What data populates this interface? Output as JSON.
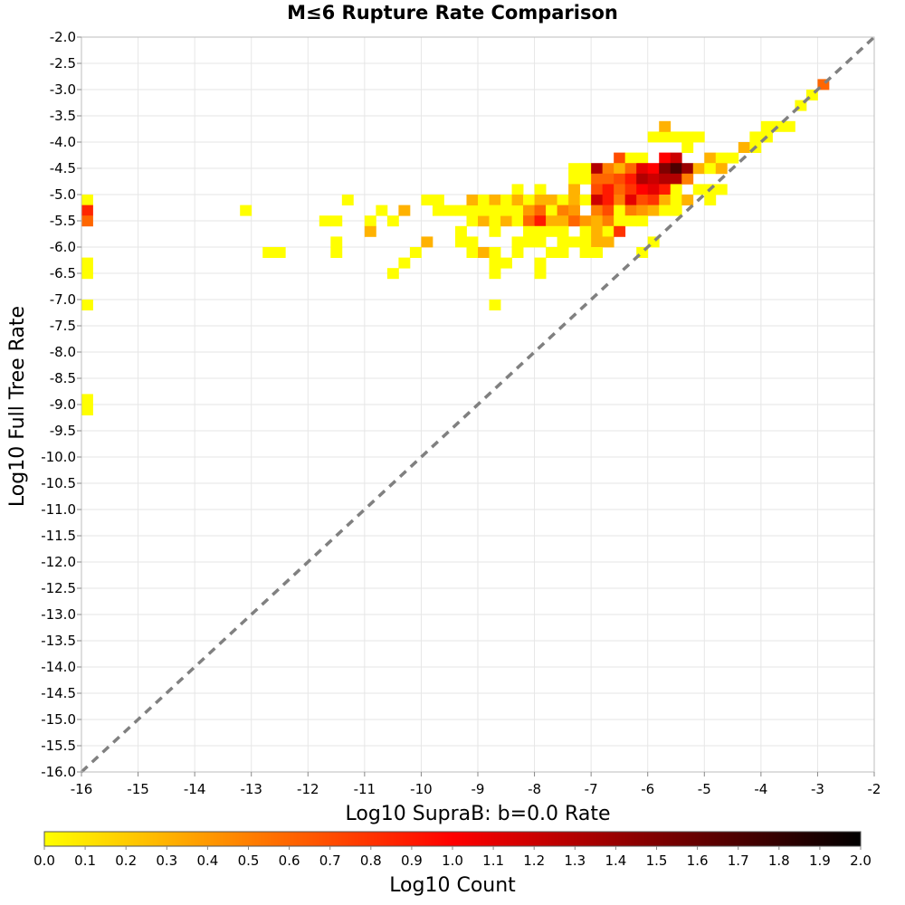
{
  "chart_data": {
    "type": "heatmap",
    "title": "M≤6 Rupture Rate Comparison",
    "xlabel": "Log10 SupraB: b=0.0 Rate",
    "ylabel": "Log10 Full Tree Rate",
    "colorbar_label": "Log10 Count",
    "xlim": [
      -16,
      -2
    ],
    "ylim": [
      -16,
      -2
    ],
    "x_ticks": [
      "-16",
      "-15",
      "-14",
      "-13",
      "-12",
      "-11",
      "-10",
      "-9",
      "-8",
      "-7",
      "-6",
      "-5",
      "-4",
      "-3",
      "-2"
    ],
    "y_ticks": [
      "-2.0",
      "-2.5",
      "-3.0",
      "-3.5",
      "-4.0",
      "-4.5",
      "-5.0",
      "-5.5",
      "-6.0",
      "-6.5",
      "-7.0",
      "-7.5",
      "-8.0",
      "-8.5",
      "-9.0",
      "-9.5",
      "-10.0",
      "-10.5",
      "-11.0",
      "-11.5",
      "-12.0",
      "-12.5",
      "-13.0",
      "-13.5",
      "-14.0",
      "-14.5",
      "-15.0",
      "-15.5",
      "-16.0"
    ],
    "colorbar_ticks": [
      "0.0",
      "0.1",
      "0.2",
      "0.3",
      "0.4",
      "0.5",
      "0.6",
      "0.7",
      "0.8",
      "0.9",
      "1.0",
      "1.1",
      "1.2",
      "1.3",
      "1.4",
      "1.5",
      "1.6",
      "1.7",
      "1.8",
      "1.9",
      "2.0"
    ],
    "colorbar_range": [
      0,
      2
    ],
    "colormap": [
      "#ffff00",
      "#ff7f00",
      "#ff0000",
      "#7f0000",
      "#000000"
    ],
    "reference_line": {
      "from": [
        -16,
        -16
      ],
      "to": [
        -2,
        -2
      ],
      "style": "dashed",
      "color": "#808080"
    },
    "cell_size": [
      0.2,
      0.2
    ],
    "cells": [
      [
        -15.9,
        -5.1,
        0.0
      ],
      [
        -15.9,
        -5.3,
        0.85
      ],
      [
        -15.9,
        -5.5,
        0.6
      ],
      [
        -15.9,
        -6.3,
        0.0
      ],
      [
        -15.9,
        -6.5,
        0.0
      ],
      [
        -15.9,
        -7.1,
        0.0
      ],
      [
        -15.9,
        -8.9,
        0.0
      ],
      [
        -15.9,
        -9.1,
        0.0
      ],
      [
        -13.1,
        -5.3,
        0.0
      ],
      [
        -12.7,
        -6.1,
        0.0
      ],
      [
        -12.5,
        -6.1,
        0.0
      ],
      [
        -11.7,
        -5.5,
        0.0
      ],
      [
        -11.5,
        -5.5,
        0.0
      ],
      [
        -11.5,
        -5.9,
        0.0
      ],
      [
        -11.5,
        -6.1,
        0.0
      ],
      [
        -11.3,
        -5.1,
        0.0
      ],
      [
        -10.9,
        -5.5,
        0.0
      ],
      [
        -10.9,
        -5.7,
        0.3
      ],
      [
        -10.7,
        -5.3,
        0.0
      ],
      [
        -10.5,
        -5.5,
        0.0
      ],
      [
        -10.3,
        -5.3,
        0.3
      ],
      [
        -10.5,
        -6.5,
        0.0
      ],
      [
        -10.3,
        -6.3,
        0.0
      ],
      [
        -10.1,
        -6.1,
        0.0
      ],
      [
        -9.9,
        -5.9,
        0.3
      ],
      [
        -9.9,
        -5.1,
        0.0
      ],
      [
        -9.7,
        -5.1,
        0.0
      ],
      [
        -9.7,
        -5.3,
        0.0
      ],
      [
        -9.5,
        -5.3,
        0.0
      ],
      [
        -9.3,
        -5.3,
        0.0
      ],
      [
        -9.1,
        -5.3,
        0.0
      ],
      [
        -9.1,
        -5.1,
        0.3
      ],
      [
        -8.9,
        -5.1,
        0.0
      ],
      [
        -8.7,
        -5.1,
        0.3
      ],
      [
        -9.3,
        -5.7,
        0.0
      ],
      [
        -9.1,
        -5.5,
        0.0
      ],
      [
        -9.1,
        -5.9,
        0.0
      ],
      [
        -9.3,
        -5.9,
        0.0
      ],
      [
        -9.1,
        -6.1,
        0.0
      ],
      [
        -8.9,
        -5.5,
        0.3
      ],
      [
        -8.7,
        -5.5,
        0.0
      ],
      [
        -8.5,
        -5.5,
        0.3
      ],
      [
        -8.3,
        -5.5,
        0.0
      ],
      [
        -8.9,
        -5.3,
        0.0
      ],
      [
        -8.7,
        -5.3,
        0.0
      ],
      [
        -8.5,
        -5.3,
        0.0
      ],
      [
        -8.3,
        -5.3,
        0.0
      ],
      [
        -8.3,
        -4.9,
        0.0
      ],
      [
        -8.5,
        -5.1,
        0.0
      ],
      [
        -8.3,
        -5.1,
        0.3
      ],
      [
        -8.7,
        -5.7,
        0.0
      ],
      [
        -8.9,
        -6.1,
        0.3
      ],
      [
        -8.7,
        -6.1,
        0.0
      ],
      [
        -8.7,
        -6.3,
        0.0
      ],
      [
        -8.7,
        -6.5,
        0.0
      ],
      [
        -8.5,
        -6.3,
        0.0
      ],
      [
        -8.7,
        -7.1,
        0.0
      ],
      [
        -8.1,
        -5.1,
        0.0
      ],
      [
        -8.1,
        -5.3,
        0.4
      ],
      [
        -8.1,
        -5.5,
        0.6
      ],
      [
        -7.9,
        -4.9,
        0.0
      ],
      [
        -7.9,
        -5.1,
        0.3
      ],
      [
        -7.9,
        -5.3,
        0.6
      ],
      [
        -7.9,
        -5.5,
        0.9
      ],
      [
        -7.9,
        -5.7,
        0.0
      ],
      [
        -7.9,
        -5.9,
        0.0
      ],
      [
        -8.1,
        -5.7,
        0.0
      ],
      [
        -8.1,
        -5.9,
        0.0
      ],
      [
        -8.3,
        -5.9,
        0.0
      ],
      [
        -8.3,
        -6.1,
        0.0
      ],
      [
        -7.9,
        -6.3,
        0.0
      ],
      [
        -7.9,
        -6.5,
        0.0
      ],
      [
        -7.7,
        -5.1,
        0.3
      ],
      [
        -7.7,
        -5.3,
        0.0
      ],
      [
        -7.7,
        -5.5,
        0.3
      ],
      [
        -7.7,
        -5.7,
        0.0
      ],
      [
        -7.7,
        -6.1,
        0.0
      ],
      [
        -7.5,
        -5.1,
        0.0
      ],
      [
        -7.5,
        -5.3,
        0.5
      ],
      [
        -7.5,
        -5.5,
        0.3
      ],
      [
        -7.5,
        -5.7,
        0.0
      ],
      [
        -7.5,
        -5.9,
        0.0
      ],
      [
        -7.5,
        -6.1,
        0.0
      ],
      [
        -7.3,
        -4.5,
        0.0
      ],
      [
        -7.3,
        -4.7,
        0.0
      ],
      [
        -7.3,
        -4.9,
        0.3
      ],
      [
        -7.3,
        -5.1,
        0.3
      ],
      [
        -7.3,
        -5.3,
        0.4
      ],
      [
        -7.3,
        -5.5,
        0.6
      ],
      [
        -7.3,
        -5.9,
        0.0
      ],
      [
        -7.1,
        -4.5,
        0.0
      ],
      [
        -7.1,
        -4.7,
        0.0
      ],
      [
        -7.1,
        -5.1,
        0.0
      ],
      [
        -7.1,
        -5.5,
        0.4
      ],
      [
        -7.1,
        -5.7,
        0.0
      ],
      [
        -7.1,
        -5.9,
        0.0
      ],
      [
        -7.1,
        -6.1,
        0.0
      ],
      [
        -6.9,
        -4.5,
        1.3
      ],
      [
        -6.9,
        -4.7,
        0.6
      ],
      [
        -6.9,
        -4.9,
        0.7
      ],
      [
        -6.9,
        -5.1,
        1.2
      ],
      [
        -6.9,
        -5.3,
        0.5
      ],
      [
        -6.9,
        -5.5,
        0.3
      ],
      [
        -6.9,
        -5.7,
        0.3
      ],
      [
        -6.9,
        -5.9,
        0.3
      ],
      [
        -6.9,
        -6.1,
        0.0
      ],
      [
        -6.7,
        -4.5,
        0.5
      ],
      [
        -6.7,
        -4.7,
        0.6
      ],
      [
        -6.7,
        -4.9,
        0.9
      ],
      [
        -6.7,
        -5.1,
        0.9
      ],
      [
        -6.7,
        -5.3,
        0.7
      ],
      [
        -6.7,
        -5.5,
        0.5
      ],
      [
        -6.7,
        -5.7,
        0.0
      ],
      [
        -6.7,
        -5.9,
        0.3
      ],
      [
        -6.5,
        -4.3,
        0.7
      ],
      [
        -6.5,
        -4.5,
        0.3
      ],
      [
        -6.5,
        -4.7,
        0.7
      ],
      [
        -6.5,
        -4.9,
        0.6
      ],
      [
        -6.5,
        -5.1,
        0.5
      ],
      [
        -6.5,
        -5.3,
        0.0
      ],
      [
        -6.5,
        -5.5,
        0.0
      ],
      [
        -6.5,
        -5.7,
        0.8
      ],
      [
        -6.3,
        -4.3,
        0.0
      ],
      [
        -6.3,
        -4.5,
        0.6
      ],
      [
        -6.3,
        -4.7,
        0.9
      ],
      [
        -6.3,
        -4.9,
        0.8
      ],
      [
        -6.3,
        -5.1,
        1.1
      ],
      [
        -6.3,
        -5.3,
        0.5
      ],
      [
        -6.3,
        -5.5,
        0.0
      ],
      [
        -6.1,
        -4.3,
        0.0
      ],
      [
        -6.1,
        -4.5,
        1.1
      ],
      [
        -6.1,
        -4.7,
        1.3
      ],
      [
        -6.1,
        -4.9,
        1.0
      ],
      [
        -6.1,
        -5.1,
        0.7
      ],
      [
        -6.1,
        -5.3,
        0.4
      ],
      [
        -6.1,
        -5.5,
        0.0
      ],
      [
        -6.1,
        -6.1,
        0.0
      ],
      [
        -5.9,
        -3.9,
        0.0
      ],
      [
        -5.9,
        -4.5,
        1.0
      ],
      [
        -5.9,
        -4.7,
        1.2
      ],
      [
        -5.9,
        -4.9,
        1.1
      ],
      [
        -5.9,
        -5.1,
        0.8
      ],
      [
        -5.9,
        -5.3,
        0.3
      ],
      [
        -5.9,
        -5.9,
        0.0
      ],
      [
        -5.7,
        -3.9,
        0.0
      ],
      [
        -5.7,
        -4.3,
        1.0
      ],
      [
        -5.7,
        -4.5,
        1.5
      ],
      [
        -5.7,
        -4.7,
        1.3
      ],
      [
        -5.7,
        -4.9,
        0.9
      ],
      [
        -5.7,
        -5.1,
        0.3
      ],
      [
        -5.7,
        -5.3,
        0.0
      ],
      [
        -5.7,
        -3.7,
        0.3
      ],
      [
        -5.5,
        -3.9,
        0.0
      ],
      [
        -5.5,
        -4.3,
        1.2
      ],
      [
        -5.5,
        -4.5,
        1.7
      ],
      [
        -5.5,
        -4.7,
        1.3
      ],
      [
        -5.5,
        -4.9,
        0.0
      ],
      [
        -5.5,
        -5.1,
        0.0
      ],
      [
        -5.5,
        -5.3,
        0.0
      ],
      [
        -5.3,
        -3.9,
        0.0
      ],
      [
        -5.3,
        -4.1,
        0.0
      ],
      [
        -5.3,
        -4.5,
        1.4
      ],
      [
        -5.3,
        -4.7,
        0.5
      ],
      [
        -5.3,
        -5.1,
        0.3
      ],
      [
        -5.1,
        -3.9,
        0.0
      ],
      [
        -5.1,
        -4.5,
        0.3
      ],
      [
        -5.1,
        -4.9,
        0.0
      ],
      [
        -4.9,
        -4.3,
        0.3
      ],
      [
        -4.9,
        -4.5,
        0.0
      ],
      [
        -4.9,
        -4.9,
        0.0
      ],
      [
        -4.9,
        -5.1,
        0.0
      ],
      [
        -4.7,
        -4.3,
        0.0
      ],
      [
        -4.7,
        -4.5,
        0.3
      ],
      [
        -4.7,
        -4.9,
        0.0
      ],
      [
        -4.5,
        -4.3,
        0.0
      ],
      [
        -4.3,
        -4.1,
        0.3
      ],
      [
        -4.1,
        -3.9,
        0.0
      ],
      [
        -4.1,
        -4.1,
        0.0
      ],
      [
        -3.9,
        -3.9,
        0.0
      ],
      [
        -3.9,
        -3.7,
        0.0
      ],
      [
        -3.9,
        -3.9,
        0.0
      ],
      [
        -3.7,
        -3.7,
        0.0
      ],
      [
        -3.5,
        -3.7,
        0.0
      ],
      [
        -3.3,
        -3.3,
        0.0
      ],
      [
        -3.1,
        -3.1,
        0.0
      ],
      [
        -2.9,
        -2.9,
        0.6
      ]
    ]
  }
}
